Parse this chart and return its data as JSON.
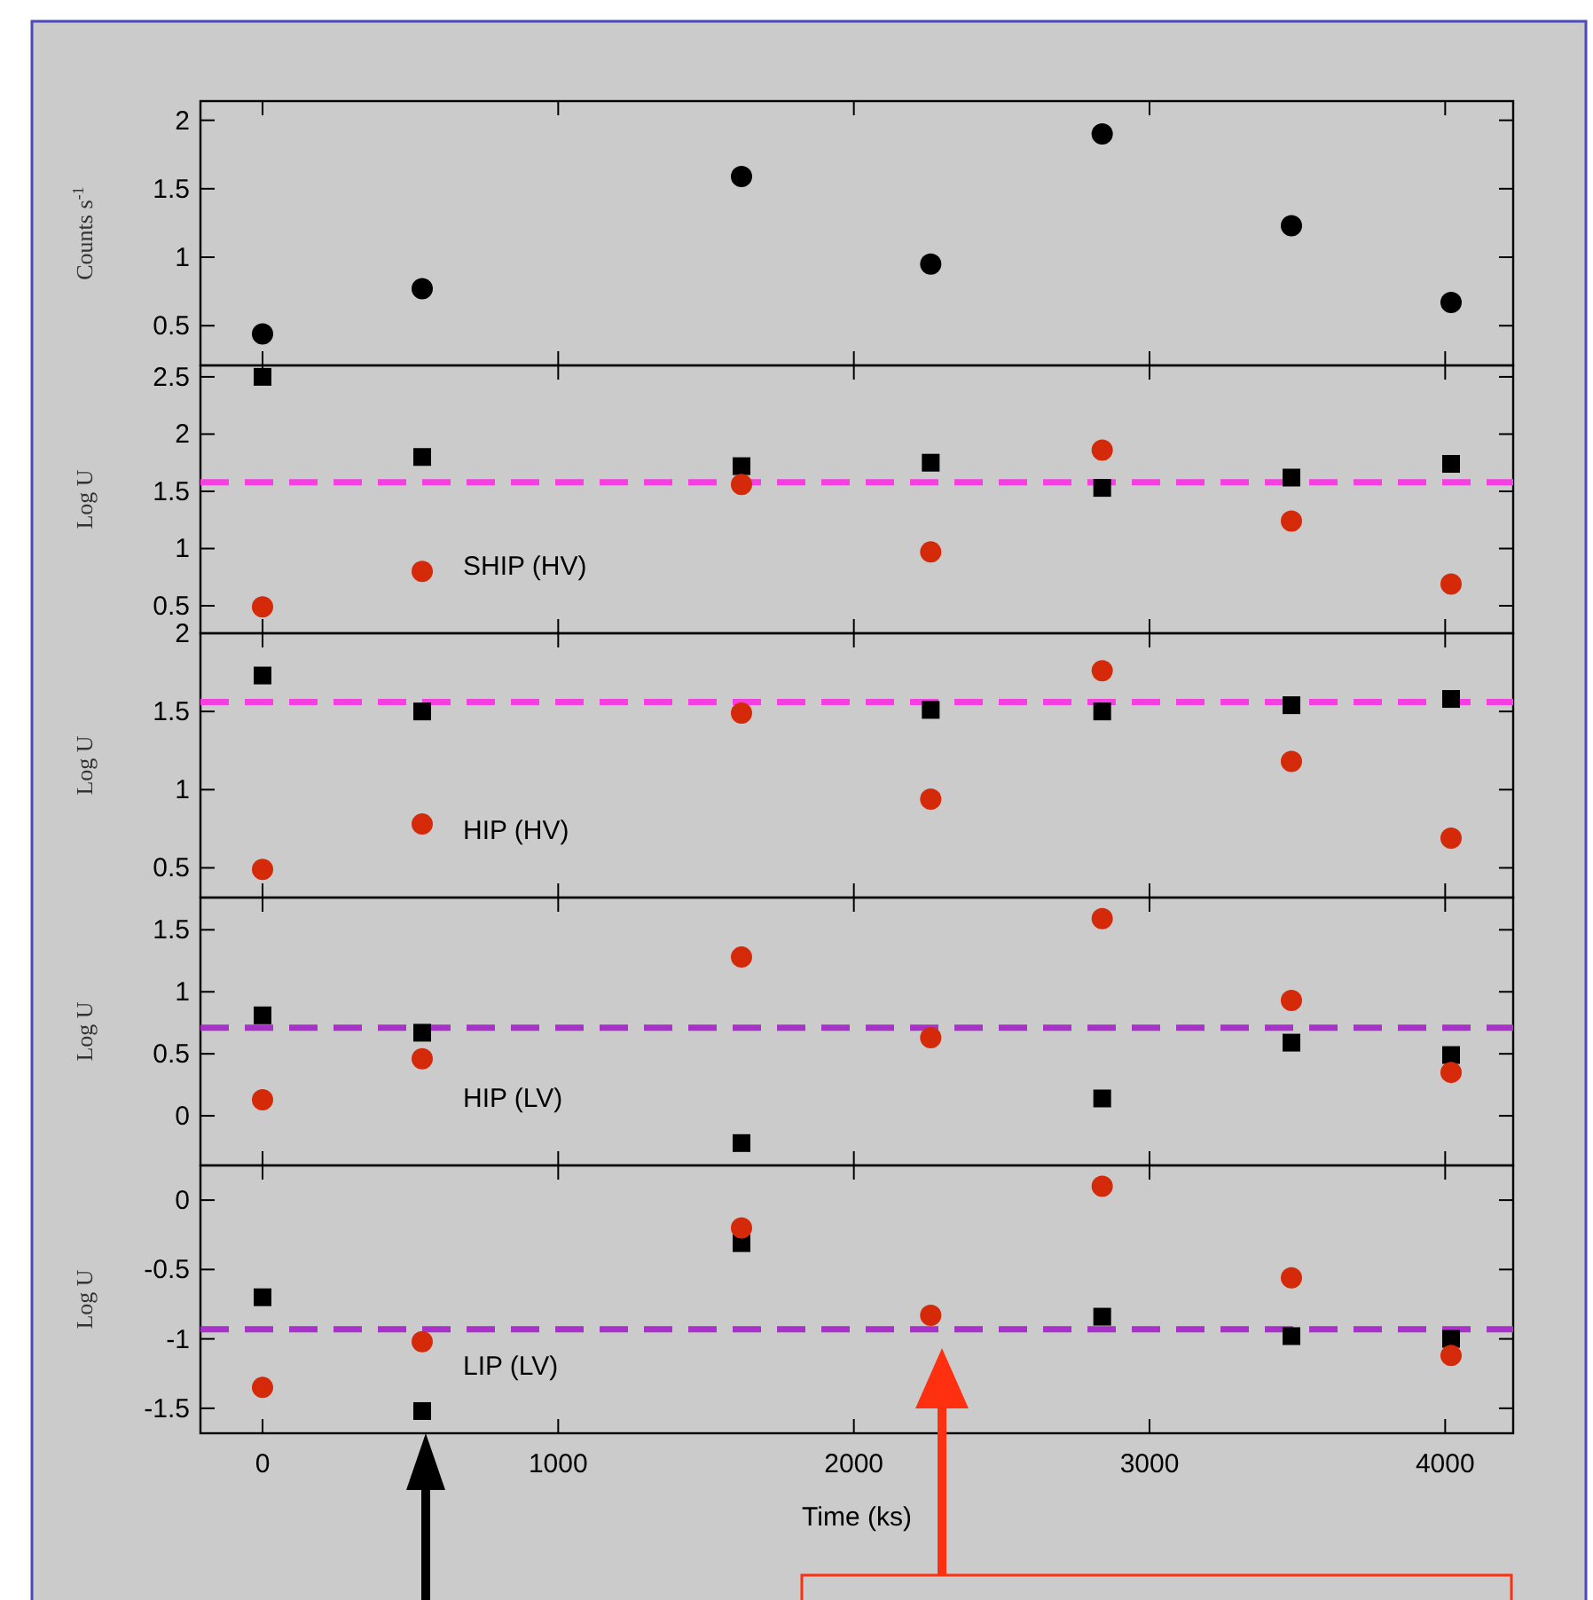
{
  "chart_data": [
    {
      "type": "scatter",
      "ylabel": "Counts s$^{-1}$",
      "x": [
        0,
        540,
        1620,
        2260,
        2840,
        3480,
        4020
      ],
      "xlim": [
        -210,
        4230
      ],
      "xticks": [
        0,
        1000,
        2000,
        3000,
        4000
      ],
      "ylim": [
        0.21,
        2.14
      ],
      "yticks": [
        0.5,
        1,
        1.5,
        2
      ],
      "tick_labels": "y",
      "series": [
        {
          "color": "#000000",
          "marker": "circle",
          "values": [
            0.44,
            0.77,
            1.59,
            0.95,
            1.9,
            1.23,
            0.67
          ]
        }
      ]
    },
    {
      "type": "scatter",
      "ylabel": "Log U",
      "x": [
        0,
        540,
        1620,
        2260,
        2840,
        3480,
        4020
      ],
      "xlim": [
        -210,
        4230
      ],
      "xticks": [
        0,
        1000,
        2000,
        3000,
        4000
      ],
      "ylim": [
        0.26,
        2.6
      ],
      "yticks": [
        0.5,
        1,
        1.5,
        2,
        2.5
      ],
      "tick_labels": "y",
      "annotations": [
        "SHIP (HV)"
      ],
      "ref_lines": [
        {
          "axis": "y",
          "value": 1.58,
          "color": "#f53fe0",
          "line_style": "dashed"
        }
      ],
      "series": [
        {
          "color": "#000000",
          "marker": "square",
          "values": [
            2.5,
            1.8,
            1.72,
            1.75,
            1.53,
            1.62,
            1.74
          ]
        },
        {
          "color": "#d42a0a",
          "marker": "circle",
          "values": [
            0.49,
            0.8,
            1.56,
            0.97,
            1.86,
            1.24,
            0.69
          ]
        }
      ]
    },
    {
      "type": "scatter",
      "ylabel": "Log U",
      "x": [
        0,
        540,
        1620,
        2260,
        2840,
        3480,
        4020
      ],
      "xlim": [
        -210,
        4230
      ],
      "xticks": [
        0,
        1000,
        2000,
        3000,
        4000
      ],
      "ylim": [
        0.31,
        2.0
      ],
      "yticks": [
        0.5,
        1,
        1.5,
        2
      ],
      "tick_labels": "y",
      "annotations": [
        "HIP (HV)"
      ],
      "ref_lines": [
        {
          "axis": "y",
          "value": 1.56,
          "color": "#f53fe0",
          "line_style": "dashed"
        }
      ],
      "series": [
        {
          "color": "#000000",
          "marker": "square",
          "values": [
            1.73,
            1.5,
            null,
            1.51,
            1.5,
            1.54,
            1.58
          ]
        },
        {
          "color": "#d42a0a",
          "marker": "circle",
          "values": [
            0.49,
            0.78,
            1.49,
            0.94,
            1.76,
            1.18,
            0.69
          ]
        }
      ]
    },
    {
      "type": "scatter",
      "ylabel": "Log U",
      "x": [
        0,
        540,
        1620,
        2260,
        2840,
        3480,
        4020
      ],
      "xlim": [
        -210,
        4230
      ],
      "xticks": [
        0,
        1000,
        2000,
        3000,
        4000
      ],
      "ylim": [
        -0.4,
        1.76
      ],
      "yticks": [
        0,
        0.5,
        1,
        1.5
      ],
      "tick_labels": "y",
      "annotations": [
        "HIP (LV)"
      ],
      "ref_lines": [
        {
          "axis": "y",
          "value": 0.71,
          "color": "#a832c8",
          "line_style": "dashed"
        }
      ],
      "series": [
        {
          "color": "#000000",
          "marker": "square",
          "values": [
            0.81,
            0.67,
            -0.22,
            null,
            0.14,
            0.59,
            0.49
          ]
        },
        {
          "color": "#d42a0a",
          "marker": "circle",
          "values": [
            0.13,
            0.46,
            1.28,
            0.63,
            1.59,
            0.93,
            0.35
          ]
        }
      ]
    },
    {
      "type": "scatter",
      "ylabel": "Log U",
      "xlabel": "Time (ks)",
      "x": [
        0,
        540,
        1620,
        2260,
        2840,
        3480,
        4020
      ],
      "xlim": [
        -210,
        4230
      ],
      "xticks": [
        0,
        1000,
        2000,
        3000,
        4000
      ],
      "ylim": [
        -1.68,
        0.25
      ],
      "yticks": [
        -1.5,
        -1,
        -0.5,
        0
      ],
      "annotations": [
        "LIP (LV)"
      ],
      "ref_lines": [
        {
          "axis": "y",
          "value": -0.93,
          "color": "#a832c8",
          "line_style": "dashed"
        }
      ],
      "series": [
        {
          "color": "#000000",
          "marker": "square",
          "values": [
            -0.7,
            -1.52,
            -0.31,
            null,
            -0.84,
            -0.98,
            -1.0
          ]
        },
        {
          "color": "#d42a0a",
          "marker": "circle",
          "values": [
            -1.35,
            -1.02,
            -0.2,
            -0.83,
            0.1,
            -0.56,
            -1.12
          ]
        }
      ]
    }
  ]
}
